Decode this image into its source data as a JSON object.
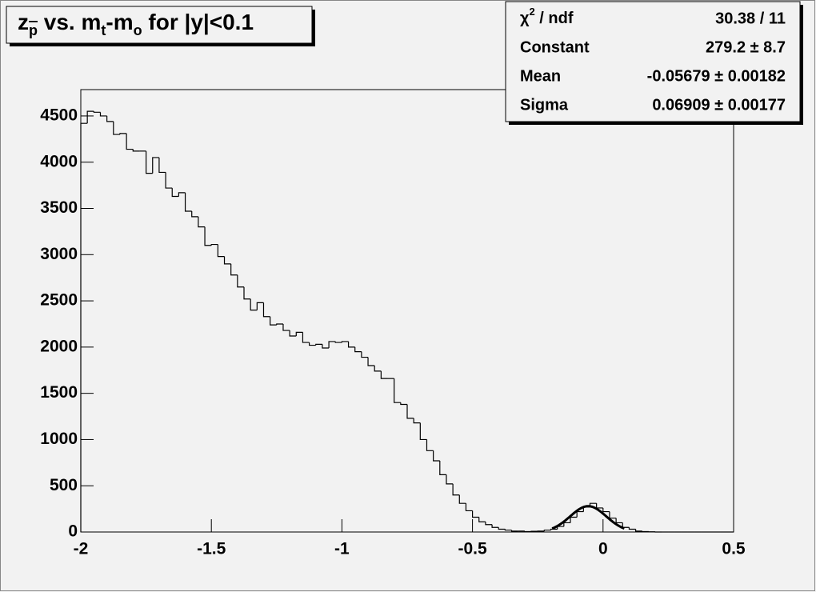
{
  "chart_data": {
    "type": "histogram",
    "title_parts": [
      {
        "text": "z"
      },
      {
        "text": "p",
        "sub": true,
        "overline": true
      },
      {
        "text": " vs. m"
      },
      {
        "text": "t",
        "sub": true
      },
      {
        "text": "-m"
      },
      {
        "text": "o",
        "sub": true
      },
      {
        "text": " for |y|<0.1"
      }
    ],
    "bins": [
      -2,
      -1.975,
      -1.95,
      -1.925,
      -1.9,
      -1.875,
      -1.85,
      -1.825,
      -1.8,
      -1.775,
      -1.75,
      -1.725,
      -1.7,
      -1.675,
      -1.65,
      -1.625,
      -1.6,
      -1.575,
      -1.55,
      -1.525,
      -1.5,
      -1.475,
      -1.45,
      -1.425,
      -1.4,
      -1.375,
      -1.35,
      -1.325,
      -1.3,
      -1.275,
      -1.25,
      -1.225,
      -1.2,
      -1.175,
      -1.15,
      -1.125,
      -1.1,
      -1.075,
      -1.05,
      -1.025,
      -1,
      -0.975,
      -0.95,
      -0.925,
      -0.9,
      -0.875,
      -0.85,
      -0.825,
      -0.8,
      -0.775,
      -0.75,
      -0.725,
      -0.7,
      -0.675,
      -0.65,
      -0.625,
      -0.6,
      -0.575,
      -0.55,
      -0.525,
      -0.5,
      -0.475,
      -0.45,
      -0.425,
      -0.4,
      -0.375,
      -0.35,
      -0.325,
      -0.3,
      -0.275,
      -0.25,
      -0.225,
      -0.2,
      -0.175,
      -0.15,
      -0.125,
      -0.1,
      -0.075,
      -0.05,
      -0.025,
      0,
      0.025,
      0.05,
      0.075,
      0.1,
      0.125,
      0.15,
      0.175,
      0.2,
      0.225,
      0.25,
      0.275,
      0.3,
      0.325,
      0.35,
      0.375,
      0.4,
      0.425,
      0.45,
      0.475,
      0.5
    ],
    "values": [
      4420,
      4550,
      4540,
      4500,
      4440,
      4300,
      4310,
      4140,
      4120,
      4120,
      3880,
      4050,
      3890,
      3720,
      3630,
      3670,
      3470,
      3410,
      3300,
      3100,
      3110,
      2980,
      2900,
      2780,
      2650,
      2520,
      2400,
      2480,
      2330,
      2240,
      2250,
      2180,
      2120,
      2160,
      2050,
      2020,
      2030,
      1990,
      2060,
      2050,
      2060,
      2000,
      1950,
      1890,
      1800,
      1740,
      1660,
      1660,
      1400,
      1380,
      1230,
      1180,
      1000,
      880,
      770,
      620,
      520,
      400,
      310,
      230,
      160,
      110,
      80,
      50,
      30,
      20,
      10,
      10,
      5,
      8,
      10,
      20,
      30,
      60,
      100,
      160,
      220,
      270,
      310,
      260,
      220,
      150,
      100,
      50,
      30,
      10,
      5,
      2,
      0,
      0,
      0,
      0,
      0,
      0,
      0,
      0,
      0,
      0,
      0,
      0
    ],
    "color": "#000000",
    "xlim": [
      -2,
      0.5
    ],
    "xticks": [
      -2,
      -1.5,
      -1,
      -0.5,
      0,
      0.5
    ],
    "ylim": [
      0,
      4785
    ],
    "yticks": [
      0,
      500,
      1000,
      1500,
      2000,
      2500,
      3000,
      3500,
      4000,
      4500
    ],
    "fit": {
      "constant": 279.2,
      "mean": -0.05679,
      "sigma": 0.06909
    },
    "stats": {
      "chi2_name": [
        "χ",
        "2",
        " / ndf"
      ],
      "chi2_value": "30.38 / 11",
      "rows": [
        {
          "name": "Constant",
          "value": {
            "value": 279.2,
            "label": "279.2 ± 8.7"
          }
        },
        {
          "name": "Mean",
          "value": {
            "value": -0.05679,
            "label": "-0.05679 ± 0.00182"
          }
        },
        {
          "name": "Sigma",
          "value": {
            "value": 0.06909,
            "label": "0.06909 ± 0.00177"
          }
        }
      ]
    }
  }
}
